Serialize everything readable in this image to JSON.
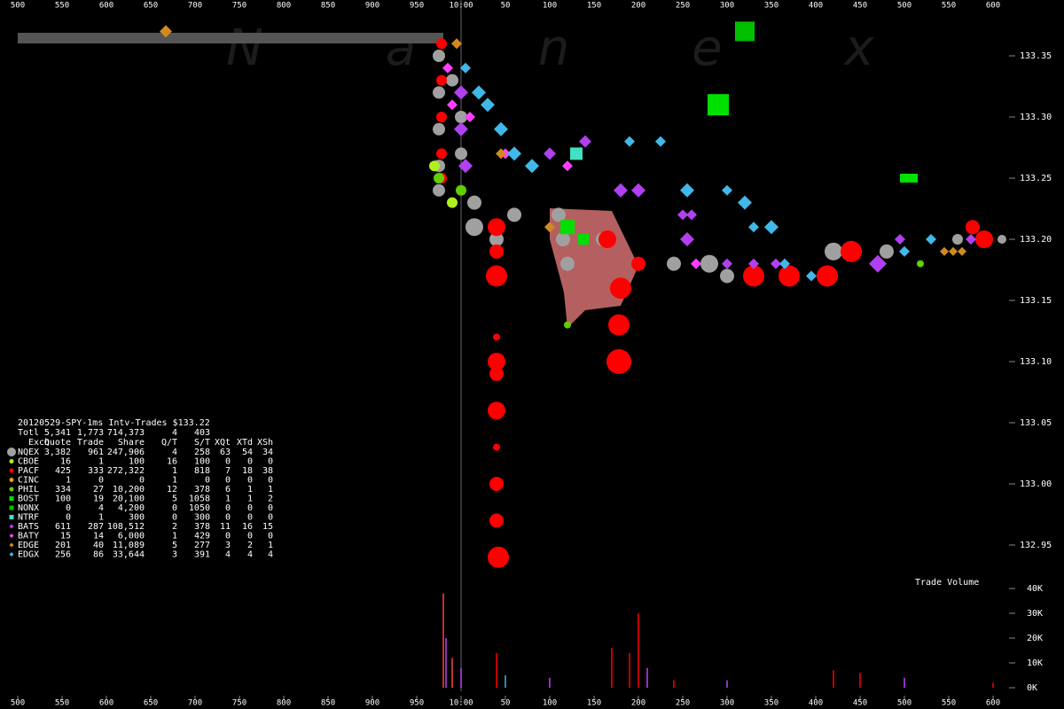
{
  "chart_data": {
    "type": "scatter",
    "watermark": "N a n e x",
    "table_title": "20120529-SPY-1ms Intv-Trades $133.22",
    "table_header": [
      "Exch",
      "Quote",
      "Trade",
      "Share",
      "Q/T",
      "S/T",
      "XQt",
      "XTd",
      "XSh"
    ],
    "total_row": [
      "Totl",
      "5,341",
      "1,773",
      "714,373",
      "4",
      "403"
    ],
    "xlim": [
      480,
      1680
    ],
    "xticks": [
      500,
      550,
      600,
      650,
      700,
      750,
      800,
      850,
      900,
      950,
      {
        "value": 1000,
        "label": "10:00"
      },
      {
        "value": 1050,
        "label": "50"
      },
      {
        "value": 1100,
        "label": "100"
      },
      {
        "value": 1150,
        "label": "150"
      },
      {
        "value": 1200,
        "label": "200"
      },
      {
        "value": 1250,
        "label": "250"
      },
      {
        "value": 1300,
        "label": "300"
      },
      {
        "value": 1350,
        "label": "350"
      },
      {
        "value": 1400,
        "label": "400"
      },
      {
        "value": 1450,
        "label": "450"
      },
      {
        "value": 1500,
        "label": "500"
      },
      {
        "value": 1550,
        "label": "550"
      },
      {
        "value": 1600,
        "label": "600"
      }
    ],
    "ylim": [
      132.93,
      133.39
    ],
    "yticks": [
      {
        "value": 133.35,
        "label": "133.35"
      },
      {
        "value": 133.3,
        "label": "133.30"
      },
      {
        "value": 133.25,
        "label": "133.25"
      },
      {
        "value": 133.2,
        "label": "133.20"
      },
      {
        "value": 133.15,
        "label": "133.15"
      },
      {
        "value": 133.1,
        "label": "133.10"
      },
      {
        "value": 133.05,
        "label": "133.05"
      },
      {
        "value": 133,
        "label": "133.00"
      },
      {
        "value": 132.95,
        "label": "132.95"
      }
    ],
    "series": [
      {
        "name": "NQEX",
        "color": "#a0a0a0",
        "marker": "circle",
        "stats": [
          "3,382",
          "961",
          "247,906",
          "4",
          "258",
          "63",
          "54",
          "34"
        ],
        "x": [
          975,
          975,
          975,
          975,
          975,
          990,
          1000,
          1000,
          1015,
          1015,
          1040,
          1060,
          1110,
          1115,
          1120,
          1160,
          1240,
          1280,
          1300,
          1420,
          1480,
          1560,
          1610
        ],
        "y": [
          133.35,
          133.32,
          133.29,
          133.26,
          133.24,
          133.33,
          133.3,
          133.27,
          133.23,
          133.21,
          133.2,
          133.22,
          133.22,
          133.2,
          133.18,
          133.2,
          133.18,
          133.18,
          133.17,
          133.19,
          133.19,
          133.2,
          133.2
        ],
        "size": [
          7,
          7,
          7,
          7,
          7,
          7,
          7,
          7,
          8,
          10,
          8,
          8,
          8,
          8,
          8,
          8,
          8,
          10,
          8,
          10,
          8,
          6,
          5
        ]
      },
      {
        "name": "CBOE",
        "color": "#b0f020",
        "marker": "circle",
        "stats": [
          "16",
          "1",
          "100",
          "16",
          "100",
          "0",
          "0",
          "0"
        ],
        "x": [
          970,
          990
        ],
        "y": [
          133.26,
          133.23
        ],
        "size": [
          6,
          6
        ]
      },
      {
        "name": "PACF",
        "color": "#ff0000",
        "marker": "circle",
        "stats": [
          "425",
          "333",
          "272,322",
          "1",
          "818",
          "7",
          "18",
          "38"
        ],
        "x": [
          978,
          978,
          978,
          978,
          978,
          1040,
          1040,
          1040,
          1040,
          1040,
          1040,
          1040,
          1040,
          1040,
          1040,
          1042,
          1165,
          1180,
          1178,
          1178,
          1200,
          1330,
          1370,
          1413,
          1440,
          1577,
          1590
        ],
        "y": [
          133.36,
          133.33,
          133.3,
          133.27,
          133.25,
          133.21,
          133.19,
          133.17,
          133.12,
          133.1,
          133.09,
          133.06,
          133.03,
          133,
          132.97,
          132.94,
          133.2,
          133.16,
          133.13,
          133.1,
          133.18,
          133.17,
          133.17,
          133.17,
          133.19,
          133.21,
          133.2
        ],
        "size": [
          6,
          6,
          6,
          6,
          6,
          10,
          8,
          12,
          4,
          10,
          8,
          10,
          4,
          8,
          8,
          12,
          10,
          12,
          12,
          14,
          8,
          12,
          12,
          12,
          12,
          8,
          10
        ]
      },
      {
        "name": "CINC",
        "color": "#e0a020",
        "marker": "circle",
        "stats": [
          "1",
          "0",
          "0",
          "1",
          "0",
          "0",
          "0",
          "0"
        ],
        "x": [],
        "y": [],
        "size": []
      },
      {
        "name": "PHIL",
        "color": "#60d000",
        "marker": "circle",
        "stats": [
          "334",
          "27",
          "10,200",
          "12",
          "378",
          "6",
          "1",
          "1"
        ],
        "x": [
          975,
          1000,
          1120,
          1518
        ],
        "y": [
          133.25,
          133.24,
          133.13,
          133.18
        ],
        "size": [
          6,
          6,
          4,
          4
        ]
      },
      {
        "name": "BOST",
        "color": "#00e000",
        "marker": "square",
        "stats": [
          "100",
          "19",
          "20,100",
          "5",
          "1058",
          "1",
          "1",
          "2"
        ],
        "x": [
          1290,
          1120,
          1138,
          1500,
          1510
        ],
        "y": [
          133.31,
          133.21,
          133.2,
          133.25,
          133.25
        ],
        "size": [
          12,
          8,
          6,
          5,
          5
        ]
      },
      {
        "name": "NONX",
        "color": "#00c000",
        "marker": "square",
        "stats": [
          "0",
          "4",
          "4,200",
          "0",
          "1050",
          "0",
          "0",
          "0"
        ],
        "x": [
          1320
        ],
        "y": [
          133.37
        ],
        "size": [
          11
        ]
      },
      {
        "name": "NTRF",
        "color": "#40e0c0",
        "marker": "square",
        "stats": [
          "0",
          "1",
          "300",
          "0",
          "300",
          "0",
          "0",
          "0"
        ],
        "x": [
          1130
        ],
        "y": [
          133.27
        ],
        "size": [
          7
        ]
      },
      {
        "name": "BATS",
        "color": "#b040f0",
        "marker": "diamond",
        "stats": [
          "611",
          "287",
          "108,512",
          "2",
          "378",
          "11",
          "16",
          "15"
        ],
        "x": [
          1000,
          1000,
          1005,
          1100,
          1140,
          1180,
          1200,
          1250,
          1255,
          1260,
          1300,
          1330,
          1355,
          1470,
          1495,
          1575
        ],
        "y": [
          133.32,
          133.29,
          133.26,
          133.27,
          133.28,
          133.24,
          133.24,
          133.22,
          133.2,
          133.22,
          133.18,
          133.18,
          133.18,
          133.18,
          133.2,
          133.2
        ],
        "size": [
          8,
          8,
          8,
          7,
          7,
          8,
          8,
          6,
          8,
          6,
          6,
          6,
          6,
          10,
          6,
          6
        ]
      },
      {
        "name": "BATY",
        "color": "#ff40ff",
        "marker": "diamond",
        "stats": [
          "15",
          "14",
          "6,000",
          "1",
          "429",
          "0",
          "0",
          "0"
        ],
        "x": [
          985,
          990,
          1010,
          1050,
          1120,
          1265
        ],
        "y": [
          133.34,
          133.31,
          133.3,
          133.27,
          133.26,
          133.18
        ],
        "size": [
          6,
          6,
          6,
          6,
          6,
          6
        ]
      },
      {
        "name": "EDGE",
        "color": "#d08a20",
        "marker": "diamond",
        "stats": [
          "201",
          "40",
          "11,089",
          "5",
          "277",
          "3",
          "2",
          "1"
        ],
        "x": [
          667,
          995,
          1045,
          1100,
          1545,
          1555,
          1565
        ],
        "y": [
          133.37,
          133.36,
          133.27,
          133.21,
          133.19,
          133.19,
          133.19
        ],
        "size": [
          7,
          6,
          6,
          6,
          5,
          5,
          5
        ]
      },
      {
        "name": "EDGX",
        "color": "#40b8e8",
        "marker": "diamond",
        "stats": [
          "256",
          "86",
          "33,644",
          "3",
          "391",
          "4",
          "4",
          "4"
        ],
        "x": [
          1005,
          1020,
          1030,
          1045,
          1060,
          1080,
          1190,
          1225,
          1255,
          1300,
          1320,
          1330,
          1350,
          1365,
          1395,
          1500,
          1530
        ],
        "y": [
          133.34,
          133.32,
          133.31,
          133.29,
          133.27,
          133.26,
          133.28,
          133.28,
          133.24,
          133.24,
          133.23,
          133.21,
          133.21,
          133.18,
          133.17,
          133.19,
          133.2
        ],
        "size": [
          6,
          8,
          8,
          8,
          8,
          8,
          6,
          6,
          8,
          6,
          8,
          6,
          8,
          6,
          6,
          6,
          6
        ]
      }
    ],
    "volume": {
      "label": "Trade Volume",
      "ylim": [
        0,
        40000
      ],
      "yticks": [
        {
          "value": 0,
          "label": "0K"
        },
        {
          "value": 10000,
          "label": "10K"
        },
        {
          "value": 20000,
          "label": "20K"
        },
        {
          "value": 30000,
          "label": "30K"
        },
        {
          "value": 40000,
          "label": "40K"
        }
      ],
      "x": [
        980,
        983,
        990,
        1000,
        1040,
        1050,
        1100,
        1170,
        1190,
        1200,
        1210,
        1240,
        1300,
        1420,
        1450,
        1500,
        1600
      ],
      "values": [
        38000,
        20000,
        12000,
        8000,
        14000,
        5000,
        4000,
        16000,
        14000,
        30000,
        8000,
        3000,
        3000,
        7000,
        6000,
        4000,
        2000
      ],
      "colors": [
        "#ff4040",
        "#c040ff",
        "#ff4040",
        "#c040ff",
        "#ff0000",
        "#40b8e8",
        "#c040ff",
        "#ff0000",
        "#ff0000",
        "#ff0000",
        "#c040ff",
        "#ff0000",
        "#c040ff",
        "#ff0000",
        "#ff0000",
        "#c040ff",
        "#ff0000"
      ]
    }
  }
}
